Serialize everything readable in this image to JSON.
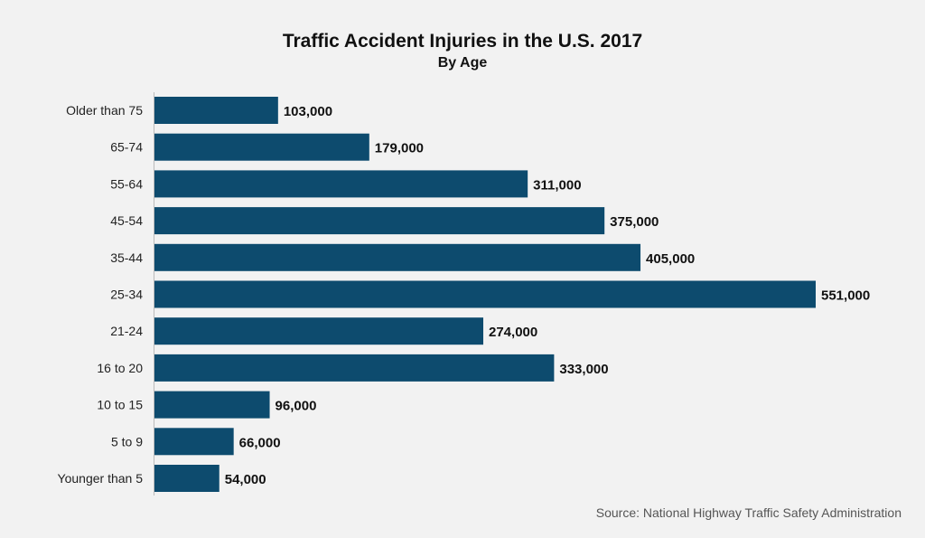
{
  "chart_data": {
    "type": "bar",
    "orientation": "horizontal",
    "title": "Traffic Accident Injuries in the U.S. 2017",
    "subtitle": "By Age",
    "categories": [
      "Older than 75",
      "65-74",
      "55-64",
      "45-54",
      "35-44",
      "25-34",
      "21-24",
      "16 to 20",
      "10 to 15",
      "5 to 9",
      "Younger than 5"
    ],
    "values": [
      103000,
      179000,
      311000,
      375000,
      405000,
      551000,
      274000,
      333000,
      96000,
      66000,
      54000
    ],
    "data_labels": [
      "103,000",
      "179,000",
      "311,000",
      "375,000",
      "405,000",
      "551,000",
      "274,000",
      "333,000",
      "96,000",
      "66,000",
      "54,000"
    ],
    "xlim": [
      0,
      551000
    ],
    "grid": false,
    "bar_color": "#0d4b6e",
    "source": "Source: National Highway Traffic Safety Administration"
  }
}
